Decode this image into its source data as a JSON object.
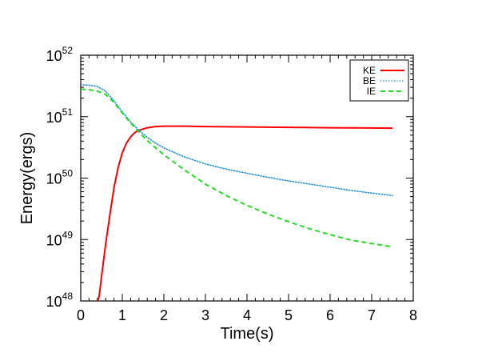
{
  "chart_data": {
    "type": "line",
    "xlabel": "Time(s)",
    "ylabel": "Energy(ergs)",
    "xlim": [
      0,
      8
    ],
    "ylim": [
      1e+48,
      1e+52
    ],
    "y_scale": "log",
    "x_ticks": [
      {
        "value": 0,
        "label": "0"
      },
      {
        "value": 1,
        "label": "1"
      },
      {
        "value": 2,
        "label": "2"
      },
      {
        "value": 3,
        "label": "3"
      },
      {
        "value": 4,
        "label": "4"
      },
      {
        "value": 5,
        "label": "5"
      },
      {
        "value": 6,
        "label": "6"
      },
      {
        "value": 7,
        "label": "7"
      },
      {
        "value": 8,
        "label": "8"
      }
    ],
    "y_ticks": [
      {
        "value": 1e+48,
        "base": "10",
        "exp": "48"
      },
      {
        "value": 1e+49,
        "base": "10",
        "exp": "49"
      },
      {
        "value": 1e+50,
        "base": "10",
        "exp": "50"
      },
      {
        "value": 1e+51,
        "base": "10",
        "exp": "51"
      },
      {
        "value": 1e+52,
        "base": "10",
        "exp": "52"
      }
    ],
    "grid": false,
    "legend_position": "top-right",
    "series": [
      {
        "name": "KE",
        "color": "#ff0000",
        "dash": "solid",
        "points": [
          [
            0.4,
            8.7e+47
          ],
          [
            0.45,
            1.3e+48
          ],
          [
            0.5,
            2.5e+48
          ],
          [
            0.55,
            4.6e+48
          ],
          [
            0.6,
            8.5e+48
          ],
          [
            0.7,
            2.5e+49
          ],
          [
            0.8,
            7e+49
          ],
          [
            0.9,
            1.5e+50
          ],
          [
            1.0,
            2.6e+50
          ],
          [
            1.1,
            3.7e+50
          ],
          [
            1.2,
            4.7e+50
          ],
          [
            1.3,
            5.5e+50
          ],
          [
            1.4,
            6e+50
          ],
          [
            1.6,
            6.6e+50
          ],
          [
            1.8,
            6.9e+50
          ],
          [
            2.0,
            7e+50
          ],
          [
            2.5,
            7e+50
          ],
          [
            3.0,
            6.9e+50
          ],
          [
            4.0,
            6.8e+50
          ],
          [
            5.0,
            6.7e+50
          ],
          [
            6.0,
            6.6e+50
          ],
          [
            7.0,
            6.55e+50
          ],
          [
            7.5,
            6.5e+50
          ]
        ]
      },
      {
        "name": "BE",
        "color": "#1f8fdc",
        "dash": "dotted",
        "points": [
          [
            0.0,
            3.3e+51
          ],
          [
            0.2,
            3.25e+51
          ],
          [
            0.4,
            3.1e+51
          ],
          [
            0.6,
            2.6e+51
          ],
          [
            0.8,
            1.8e+51
          ],
          [
            1.0,
            1.2e+51
          ],
          [
            1.2,
            8.2e+50
          ],
          [
            1.4,
            6e+50
          ],
          [
            1.6,
            4.6e+50
          ],
          [
            1.8,
            3.7e+50
          ],
          [
            2.0,
            3.1e+50
          ],
          [
            2.5,
            2.2e+50
          ],
          [
            3.0,
            1.7e+50
          ],
          [
            3.5,
            1.4e+50
          ],
          [
            4.0,
            1.2e+50
          ],
          [
            4.5,
            1.03e+50
          ],
          [
            5.0,
            9e+49
          ],
          [
            5.5,
            8e+49
          ],
          [
            6.0,
            7.1e+49
          ],
          [
            6.5,
            6.3e+49
          ],
          [
            7.0,
            5.7e+49
          ],
          [
            7.5,
            5.2e+49
          ]
        ]
      },
      {
        "name": "IE",
        "color": "#22dd22",
        "dash": "dashed",
        "points": [
          [
            0.0,
            2.8e+51
          ],
          [
            0.2,
            2.75e+51
          ],
          [
            0.4,
            2.6e+51
          ],
          [
            0.6,
            2.3e+51
          ],
          [
            0.8,
            1.7e+51
          ],
          [
            1.0,
            1.15e+51
          ],
          [
            1.2,
            7.9e+50
          ],
          [
            1.4,
            5.6e+50
          ],
          [
            1.6,
            4.1e+50
          ],
          [
            1.8,
            3.1e+50
          ],
          [
            2.0,
            2.4e+50
          ],
          [
            2.5,
            1.35e+50
          ],
          [
            3.0,
            8e+49
          ],
          [
            3.5,
            5.2e+49
          ],
          [
            4.0,
            3.6e+49
          ],
          [
            4.5,
            2.6e+49
          ],
          [
            5.0,
            1.95e+49
          ],
          [
            5.5,
            1.5e+49
          ],
          [
            6.0,
            1.2e+49
          ],
          [
            6.5,
            9.8e+48
          ],
          [
            7.0,
            8.6e+48
          ],
          [
            7.5,
            7.6e+48
          ]
        ]
      }
    ]
  }
}
